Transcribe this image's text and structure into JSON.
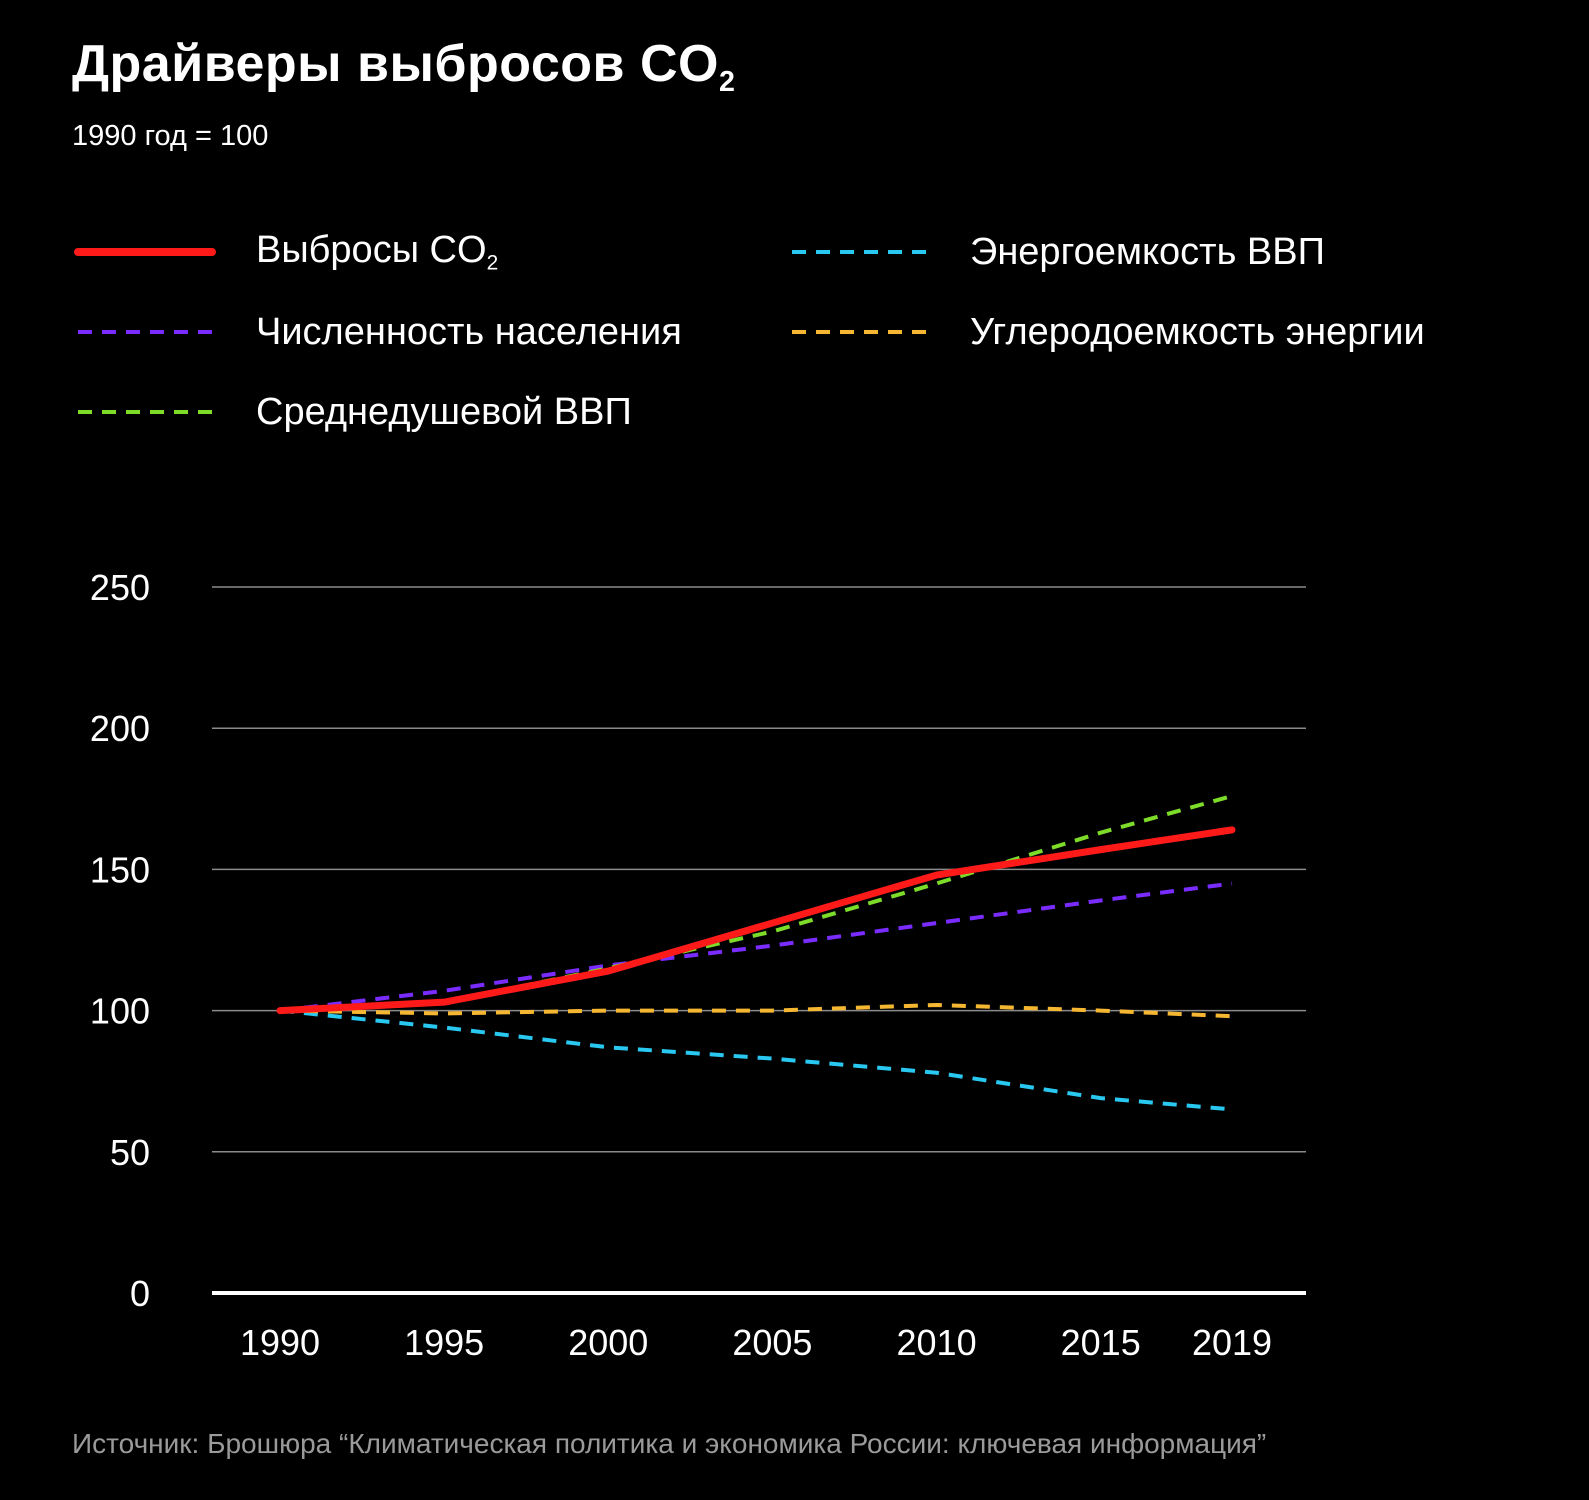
{
  "title": {
    "text": "Драйверы выбросов CO",
    "sub": "2"
  },
  "subtitle": "1990 год = 100",
  "source": "Источник: Брошюра “Климатическая политика и экономика России: ключевая информация”",
  "legend": [
    {
      "label": "Выбросы CO",
      "sub": "2",
      "color": "#ff1a1a",
      "style": "solid"
    },
    {
      "label": "Численность населения",
      "sub": "",
      "color": "#7a2cff",
      "style": "dashed"
    },
    {
      "label": "Среднедушевой ВВП",
      "sub": "",
      "color": "#7ddc2a",
      "style": "dashed"
    },
    {
      "label": "Энергоемкость ВВП",
      "sub": "",
      "color": "#29c8f0",
      "style": "dashed"
    },
    {
      "label": "Углеродоемкость энергии",
      "sub": "",
      "color": "#f5b731",
      "style": "dashed"
    }
  ],
  "chart_data": {
    "type": "line",
    "x": [
      1990,
      1995,
      2000,
      2005,
      2010,
      2015,
      2019
    ],
    "x_tick_labels": [
      "1990",
      "1995",
      "2000",
      "2005",
      "2010",
      "2015",
      "2019"
    ],
    "y_ticks": [
      0,
      50,
      100,
      150,
      200,
      250
    ],
    "ylim": [
      0,
      250
    ],
    "grid": true,
    "series": [
      {
        "name": "Выбросы CO2",
        "color": "#ff1a1a",
        "style": "solid",
        "values": [
          100,
          103,
          114,
          131,
          148,
          157,
          164
        ]
      },
      {
        "name": "Численность населения",
        "color": "#7a2cff",
        "style": "dashed",
        "values": [
          100,
          107,
          116,
          123,
          131,
          139,
          145
        ]
      },
      {
        "name": "Среднедушевой ВВП",
        "color": "#7ddc2a",
        "style": "dashed",
        "values": [
          100,
          103,
          115,
          128,
          145,
          163,
          176
        ]
      },
      {
        "name": "Энергоемкость ВВП",
        "color": "#29c8f0",
        "style": "dashed",
        "values": [
          100,
          94,
          87,
          83,
          78,
          69,
          65
        ]
      },
      {
        "name": "Углеродоемкость энергии",
        "color": "#f5b731",
        "style": "dashed",
        "values": [
          100,
          99,
          100,
          100,
          102,
          100,
          98
        ]
      }
    ]
  }
}
